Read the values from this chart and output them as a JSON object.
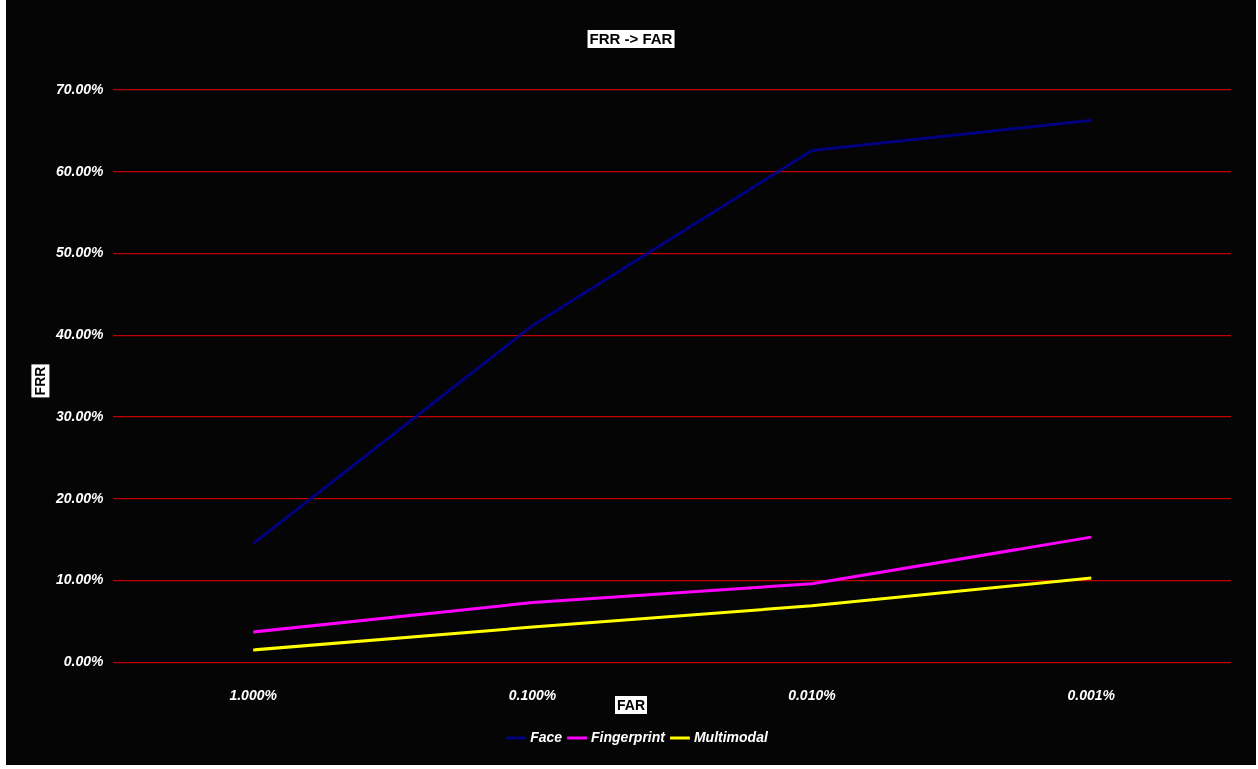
{
  "chart_data": {
    "type": "line",
    "title": "FRR -> FAR",
    "xlabel": "FAR",
    "ylabel": "FRR",
    "categories": [
      "1.000%",
      "0.100%",
      "0.010%",
      "0.001%"
    ],
    "series": [
      {
        "name": "Face",
        "color": "#000080",
        "values": [
          14.5,
          41.2,
          62.6,
          66.3
        ]
      },
      {
        "name": "Fingerprint",
        "color": "#ff00ff",
        "values": [
          3.7,
          7.3,
          9.6,
          15.3
        ]
      },
      {
        "name": "Multimodal",
        "color": "#ffff00",
        "values": [
          1.5,
          4.3,
          6.9,
          10.3
        ]
      }
    ],
    "ylim": [
      0,
      70
    ],
    "yticks": [
      {
        "value": 0,
        "label": "0.00%"
      },
      {
        "value": 10,
        "label": "10.00%"
      },
      {
        "value": 20,
        "label": "20.00%"
      },
      {
        "value": 30,
        "label": "30.00%"
      },
      {
        "value": 40,
        "label": "40.00%"
      },
      {
        "value": 50,
        "label": "50.00%"
      },
      {
        "value": 60,
        "label": "60.00%"
      },
      {
        "value": 70,
        "label": "70.00%"
      }
    ],
    "grid": "y",
    "legend": "bottom",
    "marker": "none",
    "line_style": "solid"
  }
}
